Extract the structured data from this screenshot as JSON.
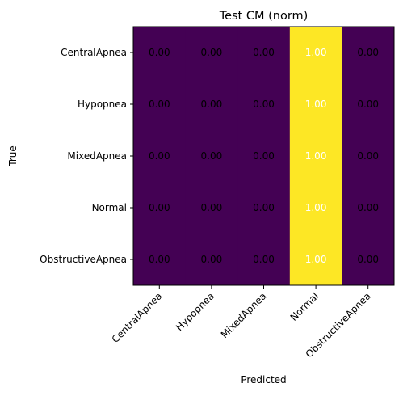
{
  "chart_data": {
    "type": "heatmap",
    "title": "Test CM (norm)",
    "xlabel": "Predicted",
    "ylabel": "True",
    "x_categories": [
      "CentralApnea",
      "Hypopnea",
      "MixedApnea",
      "Normal",
      "ObstructiveApnea"
    ],
    "y_categories": [
      "CentralApnea",
      "Hypopnea",
      "MixedApnea",
      "Normal",
      "ObstructiveApnea"
    ],
    "values": [
      [
        0.0,
        0.0,
        0.0,
        1.0,
        0.0
      ],
      [
        0.0,
        0.0,
        0.0,
        1.0,
        0.0
      ],
      [
        0.0,
        0.0,
        0.0,
        1.0,
        0.0
      ],
      [
        0.0,
        0.0,
        0.0,
        1.0,
        0.0
      ],
      [
        0.0,
        0.0,
        0.0,
        1.0,
        0.0
      ]
    ],
    "value_range": [
      0,
      1
    ],
    "colormap": "viridis",
    "colors": {
      "low": "#440154",
      "high": "#fde725",
      "text_on_low": "#000000",
      "text_on_high": "#ffffff"
    },
    "grid": false,
    "legend": "none"
  }
}
